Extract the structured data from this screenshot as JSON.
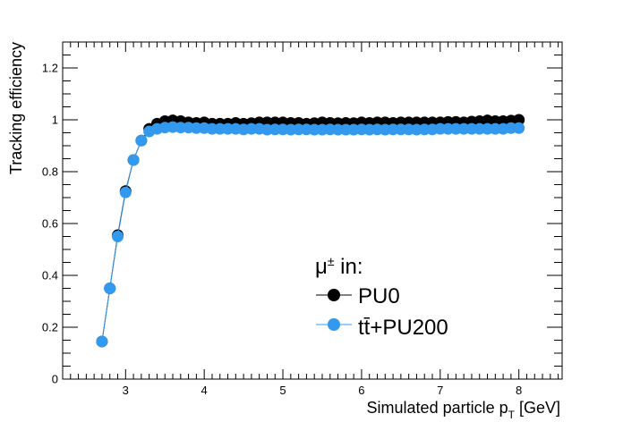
{
  "chart_data": {
    "type": "scatter",
    "title": "",
    "xlabel": "Simulated particle p",
    "xlabel_sub": "T",
    "xlabel_unit": " [GeV]",
    "ylabel": "Tracking efficiency",
    "xlim": [
      2.2,
      8.55
    ],
    "ylim": [
      0,
      1.3
    ],
    "x_ticks": [
      3,
      4,
      5,
      6,
      7,
      8
    ],
    "x_tick_labels": [
      "3",
      "4",
      "5",
      "6",
      "7",
      "8"
    ],
    "y_ticks": [
      0,
      0.2,
      0.4,
      0.6,
      0.8,
      1,
      1.2
    ],
    "y_tick_labels": [
      "0",
      "0.2",
      "0.4",
      "0.6",
      "0.8",
      "1",
      "1.2"
    ],
    "legend": {
      "header": "μ",
      "header_sup": "±",
      "header_tail": " in:",
      "position": "center-right",
      "entries": [
        "PU0",
        "tt̄+PU200"
      ]
    },
    "series": [
      {
        "name": "PU0",
        "color": "#000000",
        "x": [
          2.7,
          2.8,
          2.9,
          3.0,
          3.1,
          3.2,
          3.3,
          3.4,
          3.5,
          3.6,
          3.7,
          3.8,
          3.9,
          4.0,
          4.1,
          4.2,
          4.3,
          4.4,
          4.5,
          4.6,
          4.7,
          4.8,
          4.9,
          5.0,
          5.1,
          5.2,
          5.3,
          5.4,
          5.5,
          5.6,
          5.7,
          5.8,
          5.9,
          6.0,
          6.1,
          6.2,
          6.3,
          6.4,
          6.5,
          6.6,
          6.7,
          6.8,
          6.9,
          7.0,
          7.1,
          7.2,
          7.3,
          7.4,
          7.5,
          7.6,
          7.7,
          7.8,
          7.9,
          8.0
        ],
        "values": [
          0.145,
          0.35,
          0.555,
          0.725,
          0.845,
          0.92,
          0.965,
          0.985,
          0.995,
          0.998,
          0.995,
          0.99,
          0.988,
          0.99,
          0.985,
          0.985,
          0.985,
          0.988,
          0.985,
          0.987,
          0.99,
          0.99,
          0.99,
          0.99,
          0.988,
          0.988,
          0.985,
          0.987,
          0.99,
          0.988,
          0.987,
          0.988,
          0.987,
          0.99,
          0.988,
          0.99,
          0.99,
          0.988,
          0.99,
          0.99,
          0.99,
          0.99,
          0.99,
          0.99,
          0.992,
          0.992,
          0.99,
          0.993,
          0.995,
          0.998,
          0.995,
          0.995,
          0.997,
          1.0
        ]
      },
      {
        "name": "tt̄+PU200",
        "color": "#3399ee",
        "x": [
          2.7,
          2.8,
          2.9,
          3.0,
          3.1,
          3.2,
          3.3,
          3.4,
          3.5,
          3.6,
          3.7,
          3.8,
          3.9,
          4.0,
          4.1,
          4.2,
          4.3,
          4.4,
          4.5,
          4.6,
          4.7,
          4.8,
          4.9,
          5.0,
          5.1,
          5.2,
          5.3,
          5.4,
          5.5,
          5.6,
          5.7,
          5.8,
          5.9,
          6.0,
          6.1,
          6.2,
          6.3,
          6.4,
          6.5,
          6.6,
          6.7,
          6.8,
          6.9,
          7.0,
          7.1,
          7.2,
          7.3,
          7.4,
          7.5,
          7.6,
          7.7,
          7.8,
          7.9,
          8.0
        ],
        "values": [
          0.145,
          0.35,
          0.55,
          0.72,
          0.845,
          0.92,
          0.955,
          0.965,
          0.97,
          0.972,
          0.97,
          0.97,
          0.968,
          0.968,
          0.965,
          0.965,
          0.965,
          0.965,
          0.963,
          0.965,
          0.965,
          0.962,
          0.963,
          0.963,
          0.962,
          0.963,
          0.963,
          0.962,
          0.962,
          0.963,
          0.962,
          0.962,
          0.962,
          0.963,
          0.962,
          0.963,
          0.962,
          0.963,
          0.963,
          0.963,
          0.962,
          0.963,
          0.963,
          0.965,
          0.965,
          0.965,
          0.965,
          0.965,
          0.965,
          0.965,
          0.965,
          0.965,
          0.968,
          0.968
        ]
      }
    ]
  }
}
